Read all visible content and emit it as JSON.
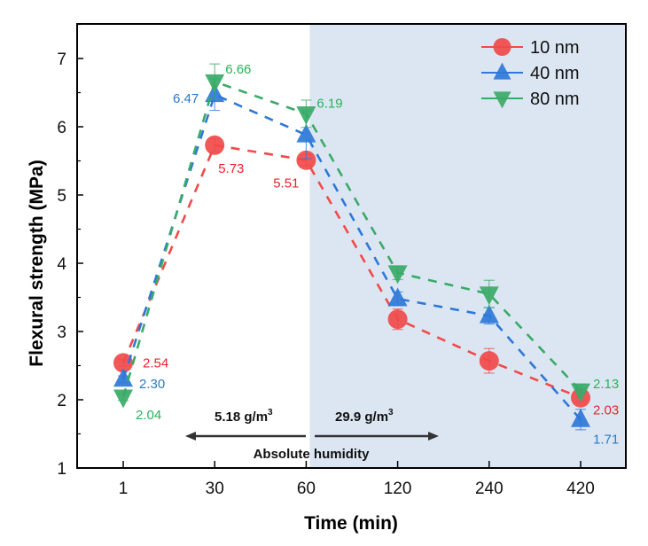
{
  "chart_data": {
    "type": "line",
    "title": "",
    "xlabel": "Time (min)",
    "ylabel": "Flexural strength (MPa)",
    "categories": [
      "1",
      "30",
      "60",
      "120",
      "240",
      "420"
    ],
    "ylim": [
      1,
      7.5
    ],
    "yticks": [
      "1",
      "2",
      "3",
      "4",
      "5",
      "6",
      "7"
    ],
    "grid": false,
    "legend_position": "top-right",
    "shaded_region": {
      "from_category": "60",
      "to": "end",
      "color": "#dce6f2"
    },
    "series": [
      {
        "name": "10 nm",
        "marker": "circle",
        "color": "#f04a4a",
        "label_color": "#e8232b",
        "values": [
          2.54,
          5.73,
          5.51,
          3.18,
          2.57,
          2.03
        ],
        "errors": [
          0.05,
          0.1,
          0.08,
          0.15,
          0.18,
          0.06
        ],
        "point_labels": [
          "2.54",
          "5.73",
          "5.51",
          "",
          "",
          "2.03"
        ]
      },
      {
        "name": "40 nm",
        "marker": "triangle-up",
        "color": "#2e78d8",
        "label_color": "#2a7ac8",
        "values": [
          2.3,
          6.47,
          5.88,
          3.48,
          3.23,
          1.71
        ],
        "errors": [
          0.05,
          0.23,
          0.35,
          0.1,
          0.12,
          0.15
        ],
        "point_labels": [
          "2.30",
          "6.47",
          "",
          "",
          "",
          "1.71"
        ]
      },
      {
        "name": "80 nm",
        "marker": "triangle-down",
        "color": "#3aaa68",
        "label_color": "#27b35a",
        "values": [
          2.04,
          6.66,
          6.19,
          3.86,
          3.55,
          2.13
        ],
        "errors": [
          0.05,
          0.26,
          0.2,
          0.1,
          0.2,
          0.1
        ],
        "point_labels": [
          "2.04",
          "6.66",
          "6.19",
          "",
          "",
          "2.13"
        ]
      }
    ],
    "annotations": {
      "left_humidity": "5.18 g/m",
      "right_humidity": "29.9 g/m",
      "superscript": "3",
      "humidity_label": "Absolute humidity"
    }
  }
}
